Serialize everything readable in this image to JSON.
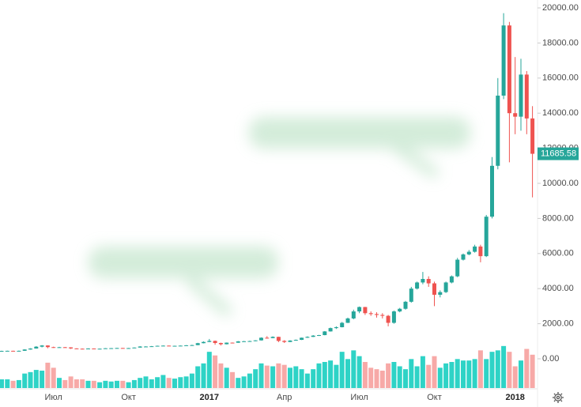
{
  "chart_data": {
    "type": "candlestick",
    "categories": [
      null,
      null,
      null,
      null,
      null,
      null,
      null,
      null,
      null,
      "Июл",
      null,
      null,
      null,
      null,
      null,
      null,
      null,
      null,
      null,
      null,
      null,
      null,
      "Окт",
      null,
      null,
      null,
      null,
      null,
      null,
      null,
      null,
      null,
      null,
      null,
      null,
      null,
      "2017",
      null,
      null,
      null,
      null,
      null,
      null,
      null,
      null,
      null,
      null,
      null,
      null,
      "Апр",
      null,
      null,
      null,
      null,
      null,
      null,
      null,
      null,
      null,
      null,
      null,
      null,
      "Июл",
      null,
      null,
      null,
      null,
      null,
      null,
      null,
      null,
      null,
      null,
      null,
      null,
      "Окт",
      null,
      null,
      null,
      null,
      null,
      null,
      null,
      null,
      null,
      null,
      null,
      null,
      null,
      "2018",
      null,
      null,
      null
    ],
    "open": [
      440,
      450,
      455,
      445,
      455,
      530,
      585,
      690,
      760,
      665,
      640,
      660,
      650,
      590,
      575,
      570,
      585,
      570,
      575,
      600,
      605,
      615,
      610,
      610,
      640,
      700,
      700,
      715,
      740,
      750,
      740,
      740,
      750,
      770,
      780,
      890,
      960,
      1020,
      900,
      830,
      920,
      915,
      995,
      1000,
      1010,
      1050,
      1200,
      1180,
      1250,
      1020,
      960,
      1040,
      1080,
      1200,
      1250,
      1320,
      1350,
      1560,
      1750,
      1800,
      2050,
      2300,
      2700,
      2950,
      2600,
      2550,
      2500,
      2450,
      2050,
      2700,
      2850,
      3250,
      4000,
      4350,
      4550,
      4300,
      3650,
      3800,
      4350,
      4700,
      5650,
      5950,
      6100,
      6400,
      5850,
      8100,
      11000,
      15000,
      19000,
      14000,
      13800,
      16200,
      13700
    ],
    "high": [
      460,
      465,
      462,
      470,
      545,
      600,
      720,
      780,
      770,
      690,
      680,
      675,
      660,
      600,
      590,
      595,
      590,
      585,
      610,
      615,
      625,
      620,
      620,
      650,
      720,
      715,
      730,
      750,
      760,
      755,
      750,
      760,
      780,
      800,
      910,
      990,
      1130,
      1040,
      920,
      930,
      930,
      1010,
      1020,
      1030,
      1060,
      1220,
      1290,
      1280,
      1260,
      1060,
      1060,
      1100,
      1210,
      1280,
      1350,
      1360,
      1580,
      1780,
      1850,
      2100,
      2350,
      2800,
      2980,
      2960,
      2700,
      2650,
      2600,
      2500,
      2750,
      2900,
      3300,
      4100,
      4400,
      4950,
      4700,
      4400,
      3900,
      4400,
      4750,
      5750,
      6000,
      6200,
      6500,
      6500,
      8200,
      11500,
      16000,
      19700,
      19200,
      17200,
      17100,
      16400,
      14400
    ],
    "low": [
      430,
      440,
      435,
      440,
      450,
      520,
      580,
      650,
      600,
      620,
      630,
      640,
      560,
      560,
      555,
      565,
      560,
      565,
      570,
      595,
      600,
      600,
      600,
      605,
      635,
      690,
      695,
      710,
      730,
      725,
      730,
      735,
      745,
      765,
      775,
      880,
      950,
      800,
      760,
      820,
      880,
      910,
      980,
      990,
      1000,
      1040,
      1150,
      1170,
      950,
      900,
      950,
      1030,
      1070,
      1190,
      1240,
      1300,
      1340,
      1550,
      1700,
      1790,
      2040,
      2250,
      2600,
      2500,
      2450,
      2350,
      2300,
      1850,
      2000,
      2650,
      2800,
      3200,
      3950,
      4250,
      4100,
      3000,
      3500,
      3750,
      4300,
      4650,
      5600,
      5900,
      6050,
      5500,
      5800,
      8000,
      10800,
      14800,
      11200,
      12800,
      13000,
      12800,
      9200
    ],
    "close": [
      450,
      455,
      445,
      455,
      530,
      585,
      690,
      760,
      665,
      640,
      660,
      650,
      590,
      575,
      570,
      585,
      570,
      575,
      600,
      605,
      615,
      610,
      610,
      640,
      700,
      700,
      715,
      740,
      750,
      740,
      740,
      750,
      770,
      780,
      890,
      960,
      1020,
      900,
      830,
      920,
      915,
      995,
      1000,
      1010,
      1050,
      1200,
      1180,
      1250,
      1020,
      960,
      1040,
      1080,
      1200,
      1250,
      1320,
      1350,
      1560,
      1750,
      1800,
      2050,
      2300,
      2700,
      2950,
      2600,
      2550,
      2500,
      2450,
      2050,
      2700,
      2850,
      3250,
      4000,
      4350,
      4550,
      4300,
      3650,
      3800,
      4350,
      4700,
      5650,
      5950,
      6100,
      6400,
      5850,
      8100,
      11000,
      15000,
      19000,
      14000,
      13800,
      16200,
      13700,
      11685.58
    ],
    "volume": [
      12,
      12,
      10,
      11,
      20,
      22,
      25,
      24,
      35,
      28,
      14,
      11,
      16,
      12,
      12,
      10,
      10,
      8,
      10,
      9,
      10,
      10,
      8,
      11,
      14,
      16,
      12,
      15,
      18,
      14,
      13,
      15,
      16,
      20,
      30,
      34,
      50,
      45,
      34,
      28,
      22,
      14,
      16,
      20,
      26,
      34,
      31,
      30,
      34,
      32,
      28,
      30,
      26,
      20,
      26,
      34,
      36,
      38,
      32,
      50,
      40,
      52,
      44,
      36,
      28,
      26,
      24,
      34,
      36,
      30,
      26,
      40,
      30,
      44,
      32,
      44,
      28,
      34,
      36,
      40,
      38,
      38,
      40,
      52,
      40,
      50,
      52,
      58,
      50,
      30,
      38,
      54,
      46
    ],
    "ylim": [
      0,
      20000
    ],
    "yticks": [
      {
        "value": 0,
        "label": "0.00"
      },
      {
        "value": 2000,
        "label": "2000.00"
      },
      {
        "value": 4000,
        "label": "4000.00"
      },
      {
        "value": 6000,
        "label": "6000.00"
      },
      {
        "value": 8000,
        "label": "8000.00"
      },
      {
        "value": 10000,
        "label": "10000.00"
      },
      {
        "value": 12000,
        "label": "12000.00"
      },
      {
        "value": 14000,
        "label": "14000.00"
      },
      {
        "value": 16000,
        "label": "16000.00"
      },
      {
        "value": 18000,
        "label": "18000.00"
      },
      {
        "value": 20000,
        "label": "20000.00"
      }
    ],
    "volume_ylim": [
      0,
      60
    ],
    "up_color": "#26a69a",
    "down_color": "#ef5350",
    "volume_up_color": "#2ed3c6",
    "volume_down_color": "#f7a9a7"
  }
}
